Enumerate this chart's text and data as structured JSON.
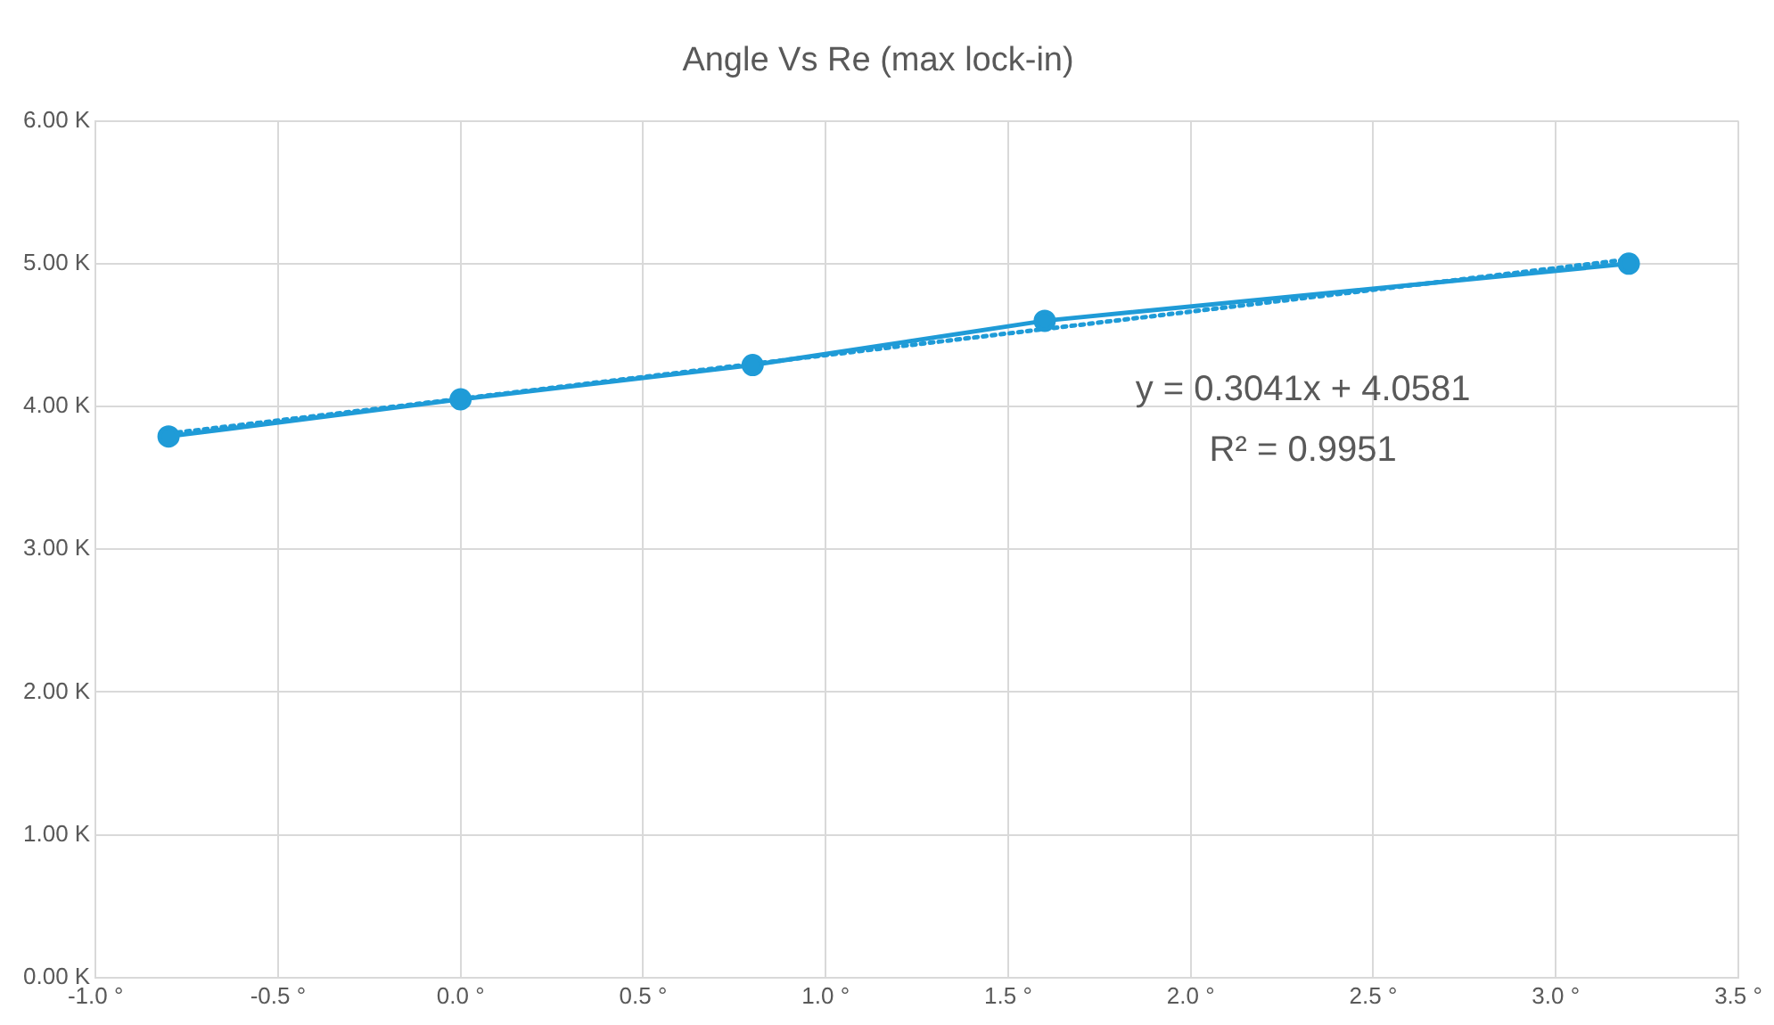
{
  "chart_data": {
    "type": "line",
    "title": "Angle Vs Re (max lock-in)",
    "x": [
      -0.8,
      0,
      0.8,
      1.6,
      3.2
    ],
    "series": [
      {
        "color": "#1f9bd7",
        "values": [
          3.79,
          4.05,
          4.29,
          4.6,
          5.0
        ]
      },
      {
        "color": "#1f9bd7",
        "x": [
          -0.8,
          3.2
        ],
        "values": [
          3.81,
          5.03
        ],
        "line_style": "dotted",
        "marker": "none"
      }
    ],
    "xlim": [
      -1.0,
      3.5
    ],
    "xticks": [
      {
        "value": -1.0,
        "label": "-1.0 °"
      },
      {
        "value": -0.5,
        "label": "-0.5 °"
      },
      {
        "value": 0,
        "label": "0.0 °"
      },
      {
        "value": 0.5,
        "label": "0.5 °"
      },
      {
        "value": 1.0,
        "label": "1.0 °"
      },
      {
        "value": 1.5,
        "label": "1.5 °"
      },
      {
        "value": 2.0,
        "label": "2.0 °"
      },
      {
        "value": 2.5,
        "label": "2.5 °"
      },
      {
        "value": 3.0,
        "label": "3.0 °"
      },
      {
        "value": 3.5,
        "label": "3.5 °"
      }
    ],
    "ylim": [
      0,
      6
    ],
    "yticks": [
      {
        "value": 0,
        "label": "0.00 K"
      },
      {
        "value": 1,
        "label": "1.00 K"
      },
      {
        "value": 2,
        "label": "2.00 K"
      },
      {
        "value": 3,
        "label": "3.00 K"
      },
      {
        "value": 4,
        "label": "4.00 K"
      },
      {
        "value": 5,
        "label": "5.00 K"
      },
      {
        "value": 6,
        "label": "6.00 K"
      }
    ],
    "annotations": [
      "y = 0.3041x + 4.0581",
      "R² = 0.9951"
    ],
    "grid": true,
    "legend": false,
    "marker": "circle",
    "line_style": "solid"
  }
}
